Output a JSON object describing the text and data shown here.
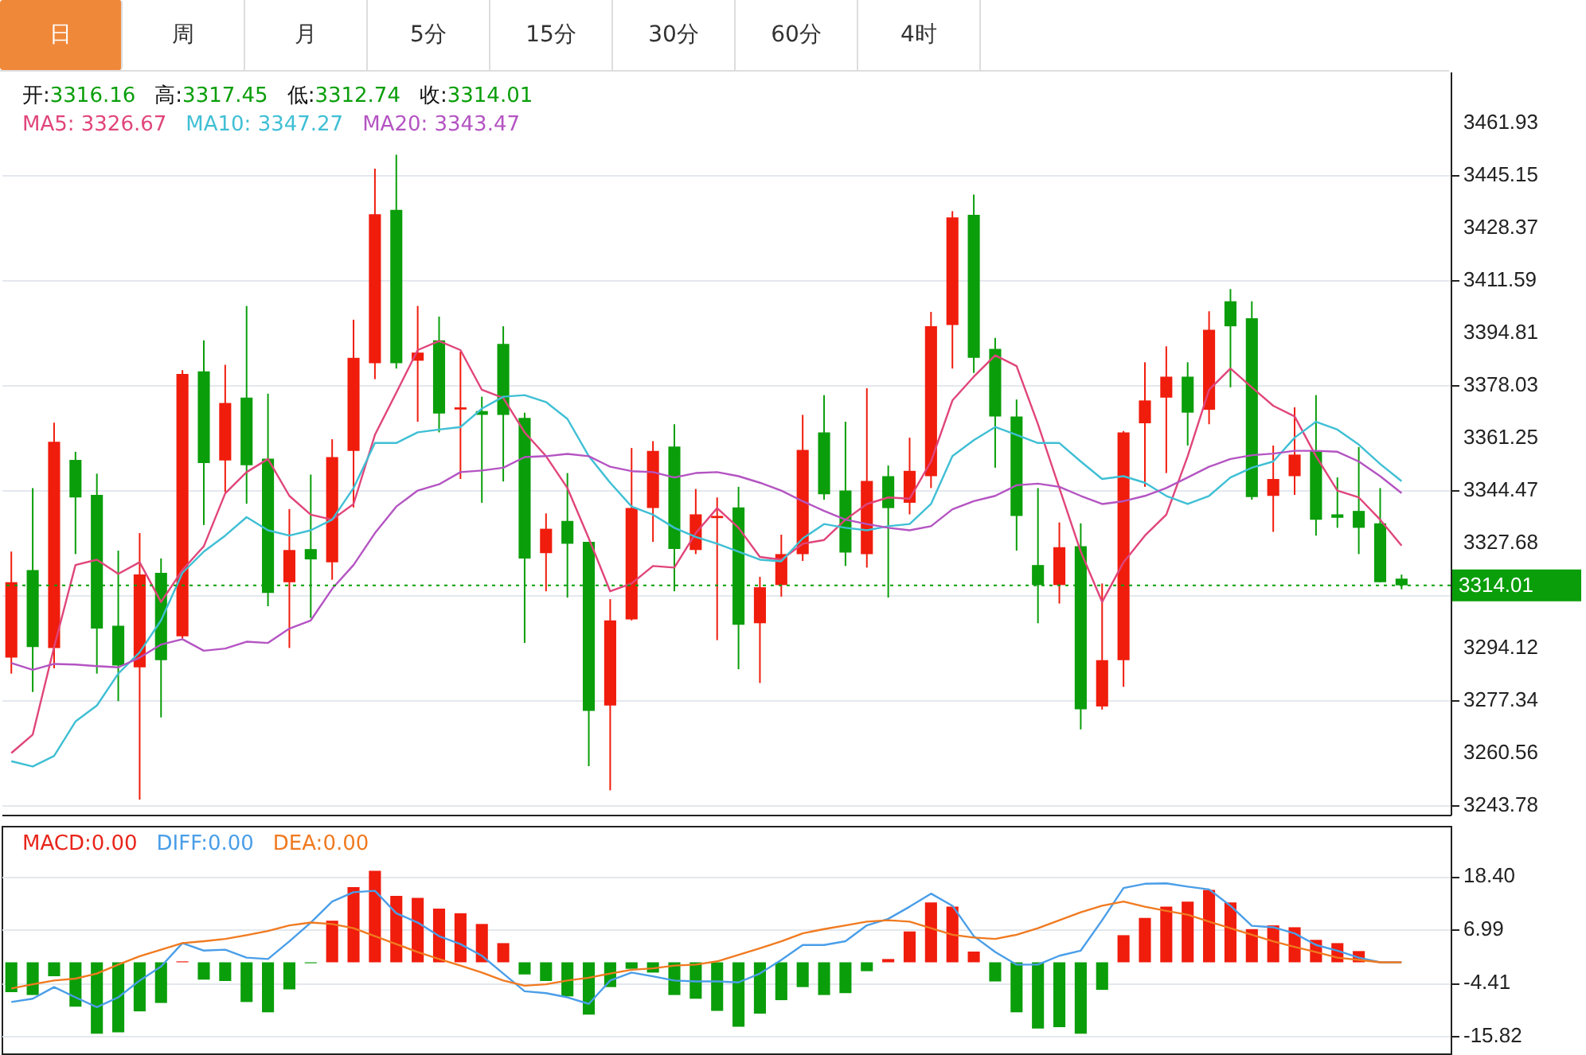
{
  "chart_data": [
    {
      "type": "candlestick",
      "categories": [
        null,
        null,
        null,
        null,
        null,
        null,
        null,
        null,
        null,
        null,
        null,
        null,
        null,
        null,
        null,
        null,
        null,
        null,
        null,
        null,
        null,
        null,
        null,
        null,
        null,
        null,
        null,
        null,
        null,
        null,
        null,
        null,
        null,
        null,
        null,
        null,
        null,
        null,
        null,
        null,
        null,
        null,
        null,
        null,
        null,
        null,
        null,
        null,
        null,
        null,
        null,
        null,
        null,
        null,
        null,
        null,
        null,
        null,
        null,
        null,
        null,
        null,
        null,
        null,
        null,
        null
      ],
      "ohlc": [
        [
          3290.9,
          3324.8,
          3285.8,
          3315.0
        ],
        [
          3318.9,
          3345.1,
          3279.9,
          3294.3
        ],
        [
          3294.0,
          3366.0,
          3287.5,
          3359.9
        ],
        [
          3354.1,
          3356.7,
          3324.0,
          3342.1
        ],
        [
          3342.9,
          3349.7,
          3285.8,
          3300.2
        ],
        [
          3301.1,
          3325.1,
          3277.0,
          3288.4
        ],
        [
          3287.8,
          3330.7,
          3245.5,
          3317.5
        ],
        [
          3318.0,
          3322.6,
          3271.8,
          3290.1
        ],
        [
          3297.7,
          3382.8,
          3297.0,
          3381.6
        ],
        [
          3382.4,
          3392.3,
          3333.3,
          3353.1
        ],
        [
          3353.9,
          3384.5,
          3343.8,
          3372.3
        ],
        [
          3374.0,
          3403.3,
          3340.1,
          3352.4
        ],
        [
          3354.5,
          3375.3,
          3307.3,
          3311.6
        ],
        [
          3315.0,
          3338.4,
          3294.0,
          3325.3
        ],
        [
          3325.6,
          3349.4,
          3303.6,
          3322.3
        ],
        [
          3321.4,
          3360.7,
          3315.8,
          3355.0
        ],
        [
          3357.0,
          3398.9,
          3338.9,
          3386.7
        ],
        [
          3385.0,
          3447.2,
          3379.9,
          3432.6
        ],
        [
          3434.0,
          3451.6,
          3383.3,
          3385.0
        ],
        [
          3385.8,
          3403.3,
          3366.3,
          3388.4
        ],
        [
          3392.3,
          3399.9,
          3362.9,
          3368.9
        ],
        [
          3370.2,
          3388.7,
          3348.0,
          3370.9
        ],
        [
          3369.7,
          3374.3,
          3340.4,
          3368.5
        ],
        [
          3391.2,
          3396.8,
          3347.2,
          3368.5
        ],
        [
          3367.5,
          3369.2,
          3295.6,
          3322.6
        ],
        [
          3324.3,
          3337.0,
          3312.1,
          3332.1
        ],
        [
          3334.6,
          3349.9,
          3310.1,
          3327.3
        ],
        [
          3327.9,
          3327.9,
          3256.2,
          3273.9
        ],
        [
          3275.6,
          3309.6,
          3248.5,
          3302.8
        ],
        [
          3303.1,
          3357.9,
          3302.8,
          3338.7
        ],
        [
          3338.7,
          3360.1,
          3327.9,
          3357.0
        ],
        [
          3358.4,
          3365.5,
          3312.1,
          3325.6
        ],
        [
          3325.3,
          3344.8,
          3324.0,
          3336.7
        ],
        [
          3335.5,
          3342.1,
          3296.5,
          3336.2
        ],
        [
          3338.9,
          3345.5,
          3287.2,
          3301.4
        ],
        [
          3301.9,
          3316.7,
          3282.8,
          3313.4
        ],
        [
          3314.1,
          3330.2,
          3310.4,
          3324.0
        ],
        [
          3324.0,
          3368.5,
          3321.8,
          3357.3
        ],
        [
          3362.9,
          3374.8,
          3341.4,
          3343.1
        ],
        [
          3344.3,
          3366.3,
          3320.2,
          3324.5
        ],
        [
          3324.0,
          3377.0,
          3319.7,
          3347.4
        ],
        [
          3348.9,
          3352.3,
          3310.1,
          3338.7
        ],
        [
          3340.4,
          3361.2,
          3336.7,
          3350.6
        ],
        [
          3348.9,
          3401.4,
          3345.1,
          3396.8
        ],
        [
          3397.2,
          3433.6,
          3383.3,
          3431.6
        ],
        [
          3432.4,
          3438.9,
          3381.9,
          3386.7
        ],
        [
          3389.6,
          3393.1,
          3351.6,
          3368.0
        ],
        [
          3368.0,
          3373.4,
          3325.1,
          3336.2
        ],
        [
          3320.5,
          3345.1,
          3301.9,
          3314.1
        ],
        [
          3314.1,
          3334.1,
          3308.2,
          3326.2
        ],
        [
          3326.5,
          3333.8,
          3268.0,
          3274.4
        ],
        [
          3275.3,
          3314.6,
          3274.3,
          3290.1
        ],
        [
          3290.1,
          3363.3,
          3281.6,
          3362.9
        ],
        [
          3365.8,
          3385.3,
          3345.5,
          3373.1
        ],
        [
          3374.0,
          3390.4,
          3349.9,
          3380.7
        ],
        [
          3380.7,
          3385.3,
          3358.7,
          3369.2
        ],
        [
          3370.1,
          3401.6,
          3365.5,
          3395.7
        ],
        [
          3404.8,
          3408.7,
          3377.3,
          3396.8
        ],
        [
          3399.4,
          3404.8,
          3341.4,
          3342.2
        ],
        [
          3342.6,
          3358.7,
          3331.1,
          3348.0
        ],
        [
          3348.9,
          3370.9,
          3342.9,
          3355.8
        ],
        [
          3357.0,
          3374.8,
          3329.9,
          3335.0
        ],
        [
          3336.7,
          3348.5,
          3332.4,
          3335.6
        ],
        [
          3337.8,
          3358.2,
          3324.0,
          3332.4
        ],
        [
          3333.8,
          3345.1,
          3315.0,
          3315.0
        ],
        [
          3316.16,
          3317.45,
          3312.74,
          3314.01
        ]
      ],
      "colors": [
        "#f01c0c",
        "#0a9e0a",
        "#f01c0c",
        "#0a9e0a",
        "#0a9e0a",
        "#0a9e0a",
        "#f01c0c",
        "#0a9e0a",
        "#f01c0c",
        "#0a9e0a",
        "#f01c0c",
        "#0a9e0a",
        "#0a9e0a",
        "#f01c0c",
        "#0a9e0a",
        "#f01c0c",
        "#f01c0c",
        "#f01c0c",
        "#0a9e0a",
        "#f01c0c",
        "#0a9e0a",
        "#f01c0c",
        "#0a9e0a",
        "#0a9e0a",
        "#0a9e0a",
        "#f01c0c",
        "#0a9e0a",
        "#0a9e0a",
        "#f01c0c",
        "#f01c0c",
        "#f01c0c",
        "#0a9e0a",
        "#f01c0c",
        "#f01c0c",
        "#0a9e0a",
        "#f01c0c",
        "#f01c0c",
        "#f01c0c",
        "#0a9e0a",
        "#0a9e0a",
        "#f01c0c",
        "#0a9e0a",
        "#f01c0c",
        "#f01c0c",
        "#f01c0c",
        "#0a9e0a",
        "#0a9e0a",
        "#0a9e0a",
        "#0a9e0a",
        "#f01c0c",
        "#0a9e0a",
        "#f01c0c",
        "#f01c0c",
        "#f01c0c",
        "#f01c0c",
        "#0a9e0a",
        "#f01c0c",
        "#0a9e0a",
        "#0a9e0a",
        "#f01c0c",
        "#f01c0c",
        "#0a9e0a",
        "#0a9e0a",
        "#0a9e0a",
        "#0a9e0a",
        "#0a9e0a"
      ],
      "series": [
        {
          "name": "MA5: 3326.67",
          "type": "line",
          "color": "#e0457b",
          "values": [
            3260.4,
            3266.3,
            3294.3,
            3320.5,
            3322.2,
            3317.7,
            3321.4,
            3308.7,
            3318.9,
            3326.5,
            3343.4,
            3350.2,
            3354.4,
            3342.6,
            3336.6,
            3335.0,
            3340.0,
            3362.1,
            3375.6,
            3389.2,
            3392.1,
            3389.2,
            3376.5,
            3373.9,
            3362.9,
            3355.3,
            3345.1,
            3329.0,
            3312.1,
            3314.6,
            3320.2,
            3319.7,
            3330.7,
            3338.7,
            3332.4,
            3323.1,
            3322.2,
            3327.3,
            3328.5,
            3335.0,
            3340.0,
            3342.1,
            3341.7,
            3353.6,
            3373.1,
            3380.7,
            3387.5,
            3384.1,
            3365.5,
            3345.1,
            3324.8,
            3308.7,
            3321.4,
            3329.9,
            3336.6,
            3355.3,
            3376.5,
            3383.3,
            3377.3,
            3371.4,
            3368.0,
            3355.3,
            3344.3,
            3342.1,
            3335.0,
            3326.7
          ]
        },
        {
          "name": "MA10: 3347.27",
          "type": "line",
          "color": "#3fbfd4",
          "values": [
            3257.8,
            3256.1,
            3259.5,
            3270.5,
            3275.6,
            3285.8,
            3292.6,
            3302.8,
            3318.0,
            3324.8,
            3329.9,
            3335.8,
            3331.6,
            3329.9,
            3331.6,
            3335.0,
            3345.1,
            3359.5,
            3359.5,
            3362.9,
            3363.8,
            3364.6,
            3370.5,
            3374.3,
            3374.8,
            3372.6,
            3367.2,
            3355.3,
            3346.8,
            3339.2,
            3336.6,
            3332.4,
            3329.5,
            3327.3,
            3324.8,
            3322.2,
            3321.7,
            3329.0,
            3333.6,
            3332.4,
            3331.6,
            3332.9,
            3333.6,
            3340.0,
            3355.3,
            3360.4,
            3364.6,
            3362.1,
            3359.5,
            3359.5,
            3353.6,
            3348.0,
            3348.9,
            3346.8,
            3342.6,
            3340.0,
            3342.6,
            3348.5,
            3351.6,
            3353.6,
            3361.2,
            3366.3,
            3363.8,
            3359.0,
            3352.8,
            3347.3
          ]
        },
        {
          "name": "MA20: 3343.47",
          "type": "line",
          "color": "#b454c2",
          "values": [
            3289.2,
            3287.0,
            3288.9,
            3288.7,
            3288.2,
            3287.8,
            3290.9,
            3295.1,
            3296.8,
            3293.1,
            3293.8,
            3296.0,
            3295.6,
            3300.2,
            3302.8,
            3312.9,
            3320.5,
            3330.7,
            3339.2,
            3344.3,
            3346.3,
            3350.2,
            3350.7,
            3351.6,
            3355.0,
            3355.3,
            3356.0,
            3355.3,
            3351.9,
            3350.5,
            3350.2,
            3348.5,
            3349.9,
            3350.2,
            3348.9,
            3346.8,
            3344.3,
            3340.9,
            3337.8,
            3335.0,
            3333.6,
            3332.4,
            3331.6,
            3332.9,
            3338.3,
            3340.9,
            3342.6,
            3346.0,
            3346.5,
            3345.5,
            3342.6,
            3340.0,
            3340.9,
            3342.6,
            3345.1,
            3348.5,
            3351.9,
            3354.4,
            3355.6,
            3356.1,
            3357.0,
            3357.0,
            3356.7,
            3353.6,
            3348.9,
            3343.5
          ]
        }
      ],
      "ylim": [
        3240.7,
        3478.2
      ],
      "yticks": [
        3243.78,
        3260.56,
        3277.34,
        3294.12,
        {
          "value": 3310.9,
          "label": null
        },
        3327.68,
        3344.47,
        3361.25,
        3378.03,
        3394.81,
        3411.59,
        3428.37,
        3445.15,
        3461.93
      ],
      "tick_labels": "y",
      "grid": "y",
      "ref_lines": [
        {
          "axis": "y",
          "value": 3314.01,
          "label": "3314.01",
          "color": "#0a9e0a",
          "line_style": "dotted"
        }
      ],
      "annotations": [
        "日",
        "周",
        "月",
        "5分",
        "15分",
        "30分",
        "60分",
        "4时",
        "开:3316.16",
        "高:3317.45",
        "低:3312.74",
        "收:3314.01"
      ]
    },
    {
      "type": "bar",
      "categories": [
        null,
        null,
        null,
        null,
        null,
        null,
        null,
        null,
        null,
        null,
        null,
        null,
        null,
        null,
        null,
        null,
        null,
        null,
        null,
        null,
        null,
        null,
        null,
        null,
        null,
        null,
        null,
        null,
        null,
        null,
        null,
        null,
        null,
        null,
        null,
        null,
        null,
        null,
        null,
        null,
        null,
        null,
        null,
        null,
        null,
        null,
        null,
        null,
        null,
        null,
        null,
        null,
        null,
        null,
        null,
        null,
        null,
        null,
        null,
        null,
        null,
        null,
        null,
        null,
        null,
        null
      ],
      "series": [
        {
          "name": "MACD:0.00",
          "color": "#e8251b",
          "values": [
            -6.4,
            -7.0,
            -3.0,
            -9.5,
            -15.3,
            -15.0,
            -10.5,
            -8.7,
            0.2,
            -3.7,
            -4.0,
            -8.5,
            -10.7,
            -5.8,
            -0.2,
            8.9,
            16.1,
            19.6,
            14.2,
            13.8,
            11.5,
            10.5,
            8.2,
            4.1,
            -2.6,
            -4.0,
            -7.3,
            -11.2,
            -5.3,
            -1.4,
            -2.2,
            -7.0,
            -7.8,
            -10.4,
            -13.8,
            -11.0,
            -8.1,
            -5.3,
            -7.0,
            -6.6,
            -1.9,
            0.7,
            6.6,
            12.8,
            11.9,
            2.3,
            -4.1,
            -10.7,
            -14.2,
            -13.9,
            -15.3,
            -5.9,
            5.8,
            9.5,
            11.9,
            13.0,
            15.5,
            12.8,
            7.1,
            7.9,
            7.5,
            4.8,
            4.1,
            2.4,
            0,
            0
          ],
          "colors": [
            "#0a9e0a",
            "#0a9e0a",
            "#0a9e0a",
            "#0a9e0a",
            "#0a9e0a",
            "#0a9e0a",
            "#0a9e0a",
            "#0a9e0a",
            "#f01c0c",
            "#0a9e0a",
            "#0a9e0a",
            "#0a9e0a",
            "#0a9e0a",
            "#0a9e0a",
            "#0a9e0a",
            "#f01c0c",
            "#f01c0c",
            "#f01c0c",
            "#f01c0c",
            "#f01c0c",
            "#f01c0c",
            "#f01c0c",
            "#f01c0c",
            "#f01c0c",
            "#0a9e0a",
            "#0a9e0a",
            "#0a9e0a",
            "#0a9e0a",
            "#0a9e0a",
            "#0a9e0a",
            "#0a9e0a",
            "#0a9e0a",
            "#0a9e0a",
            "#0a9e0a",
            "#0a9e0a",
            "#0a9e0a",
            "#0a9e0a",
            "#0a9e0a",
            "#0a9e0a",
            "#0a9e0a",
            "#0a9e0a",
            "#f01c0c",
            "#f01c0c",
            "#f01c0c",
            "#f01c0c",
            "#f01c0c",
            "#0a9e0a",
            "#0a9e0a",
            "#0a9e0a",
            "#0a9e0a",
            "#0a9e0a",
            "#0a9e0a",
            "#f01c0c",
            "#f01c0c",
            "#f01c0c",
            "#f01c0c",
            "#f01c0c",
            "#f01c0c",
            "#f01c0c",
            "#f01c0c",
            "#f01c0c",
            "#f01c0c",
            "#f01c0c",
            "#f01c0c",
            "#f01c0c",
            "#f01c0c"
          ]
        },
        {
          "name": "DIFF:0.00",
          "type": "line",
          "color": "#4a9ee8",
          "values": [
            -8.5,
            -7.8,
            -5.3,
            -7.5,
            -9.6,
            -7.5,
            -3.9,
            -0.9,
            4.1,
            2.5,
            2.7,
            1.0,
            0.7,
            4.5,
            8.5,
            13.0,
            15.0,
            15.3,
            10.5,
            8.5,
            5.6,
            3.9,
            1.4,
            -2.4,
            -6.2,
            -6.6,
            -7.5,
            -8.9,
            -3.9,
            -2.2,
            -3.0,
            -3.9,
            -4.1,
            -4.1,
            -4.3,
            -2.4,
            0.5,
            3.7,
            3.7,
            4.5,
            7.9,
            9.3,
            11.9,
            14.7,
            12.1,
            5.6,
            2.2,
            -0.5,
            -0.5,
            1.4,
            2.5,
            9.0,
            15.9,
            16.8,
            16.9,
            16.2,
            15.6,
            12.1,
            7.8,
            7.5,
            6.2,
            3.7,
            2.5,
            1.0,
            0,
            0
          ]
        },
        {
          "name": "DEA:0.00",
          "type": "line",
          "color": "#f07a20",
          "values": [
            -5.6,
            -4.7,
            -3.9,
            -3.5,
            -2.4,
            -0.5,
            1.3,
            2.7,
            4.1,
            4.5,
            5.0,
            5.8,
            6.7,
            7.9,
            8.5,
            8.2,
            7.3,
            5.6,
            3.9,
            2.2,
            0.7,
            -0.7,
            -2.2,
            -3.9,
            -5.0,
            -4.7,
            -3.9,
            -3.3,
            -2.4,
            -1.6,
            -1.3,
            -0.7,
            -0.5,
            0.2,
            1.6,
            3.0,
            4.5,
            6.2,
            7.1,
            7.9,
            8.7,
            9.0,
            8.7,
            7.3,
            5.9,
            5.3,
            5.0,
            5.9,
            7.3,
            9.0,
            10.7,
            12.1,
            13.0,
            11.9,
            11.0,
            10.2,
            8.7,
            7.3,
            5.9,
            4.5,
            3.3,
            2.2,
            1.0,
            0.5,
            0,
            0
          ]
        }
      ],
      "ylim": [
        -19.5,
        29.2
      ],
      "yticks": [
        {
          "value": -15.82,
          "label": "-15.82"
        },
        {
          "value": -4.41,
          "label": "-4.41"
        },
        {
          "value": 6.99,
          "label": "6.99"
        },
        {
          "value": 18.4,
          "label": "18.40"
        }
      ],
      "tick_labels": "y",
      "grid": "y"
    }
  ]
}
